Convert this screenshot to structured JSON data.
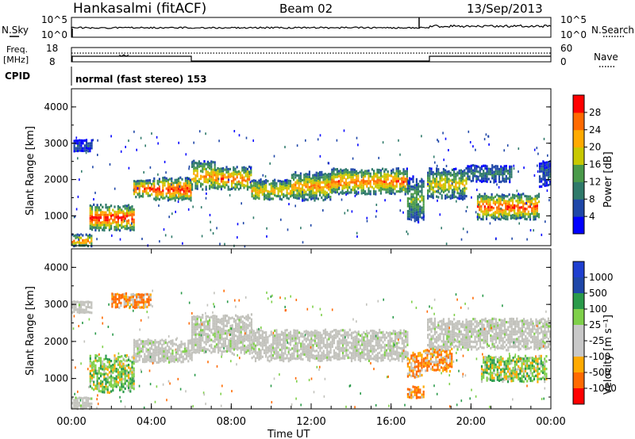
{
  "header": {
    "station": "Hankasalmi (fitACF)",
    "beam": "Beam 02",
    "date": "13/Sep/2013"
  },
  "top_panels": {
    "nsky_label": "N.Sky",
    "nsearch_label": "N.Search",
    "nsky_ticks": [
      "10^5",
      "10^0"
    ],
    "freq_label": "Freq.",
    "freq_unit": "[MHz]",
    "freq_ticks": [
      "18",
      "8"
    ],
    "nave_label": "Nave",
    "nave_ticks": [
      "60",
      "0"
    ],
    "cpid_label": "CPID",
    "cpid_text": "normal (fast stereo) 153"
  },
  "colors": {
    "power_scale": [
      "#0000ff",
      "#1f47a8",
      "#2f7a6a",
      "#4a9a4a",
      "#c8c800",
      "#ffaa00",
      "#ff6a00",
      "#ff0000"
    ],
    "velocity_scale": [
      "#ff0000",
      "#ff6a00",
      "#ffaa00",
      "#c8c8c8",
      "#c8c8c8",
      "#7fd04a",
      "#2a9a4a",
      "#1f47a8",
      "#1f3fd0"
    ],
    "velocity_gray": "#c2c2bc"
  },
  "chart_data": [
    {
      "type": "heatmap",
      "title": "Power",
      "ylabel": "Slant Range [km]",
      "ylim": [
        180,
        4500
      ],
      "xlim": [
        0,
        24
      ],
      "yticks": [
        "1000",
        "2000",
        "3000",
        "4000"
      ],
      "colorbar_label": "Power [dB]",
      "colorbar_ticks": [
        "4",
        "8",
        "12",
        "16",
        "20",
        "24",
        "28"
      ],
      "clim": [
        0,
        32
      ],
      "echo_bands": [
        {
          "t": [
            0.1,
            1.0
          ],
          "r": [
            2800,
            3100
          ],
          "p": 6
        },
        {
          "t": [
            0.9,
            3.1
          ],
          "r": [
            650,
            1300
          ],
          "p": 28
        },
        {
          "t": [
            3.1,
            4.1
          ],
          "r": [
            1550,
            2000
          ],
          "p": 26
        },
        {
          "t": [
            4.1,
            6.0
          ],
          "r": [
            1450,
            2050
          ],
          "p": 27
        },
        {
          "t": [
            6.0,
            7.2
          ],
          "r": [
            1750,
            2500
          ],
          "p": 22
        },
        {
          "t": [
            7.2,
            9.0
          ],
          "r": [
            1750,
            2350
          ],
          "p": 24
        },
        {
          "t": [
            9.0,
            11.0
          ],
          "r": [
            1450,
            2000
          ],
          "p": 20
        },
        {
          "t": [
            11.0,
            13.0
          ],
          "r": [
            1500,
            2200
          ],
          "p": 22
        },
        {
          "t": [
            13.0,
            16.8
          ],
          "r": [
            1650,
            2300
          ],
          "p": 24
        },
        {
          "t": [
            16.8,
            17.6
          ],
          "r": [
            900,
            2050
          ],
          "p": 14
        },
        {
          "t": [
            17.8,
            19.8
          ],
          "r": [
            1500,
            2300
          ],
          "p": 18
        },
        {
          "t": [
            19.8,
            22.0
          ],
          "r": [
            1950,
            2400
          ],
          "p": 10
        },
        {
          "t": [
            20.3,
            23.4
          ],
          "r": [
            950,
            1600
          ],
          "p": 26
        },
        {
          "t": [
            23.4,
            24.0
          ],
          "r": [
            1850,
            2500
          ],
          "p": 8
        },
        {
          "t": [
            0.0,
            1.0
          ],
          "r": [
            200,
            500
          ],
          "p": 24
        }
      ]
    },
    {
      "type": "heatmap",
      "title": "Velocity",
      "ylabel": "Slant Range [km]",
      "xlabel": "Time UT",
      "ylim": [
        180,
        4500
      ],
      "xlim": [
        0,
        24
      ],
      "yticks": [
        "1000",
        "2000",
        "3000",
        "4000"
      ],
      "xticks": [
        "00:00",
        "04:00",
        "08:00",
        "12:00",
        "16:00",
        "20:00",
        "00:00"
      ],
      "colorbar_label": "Velocity [m s⁻¹]",
      "colorbar_ticks": [
        "1000",
        "500",
        "100",
        "25",
        "-25",
        "-100",
        "-500",
        "-1000"
      ],
      "echo_bands": [
        {
          "t": [
            0.0,
            1.0
          ],
          "r": [
            2800,
            3100
          ],
          "v": "gray"
        },
        {
          "t": [
            0.9,
            3.1
          ],
          "r": [
            650,
            1600
          ],
          "v": "green"
        },
        {
          "t": [
            2.0,
            4.0
          ],
          "r": [
            2900,
            3300
          ],
          "v": "orange"
        },
        {
          "t": [
            3.1,
            6.0
          ],
          "r": [
            1450,
            2050
          ],
          "v": "gray"
        },
        {
          "t": [
            6.0,
            9.0
          ],
          "r": [
            1700,
            2700
          ],
          "v": "gray"
        },
        {
          "t": [
            9.0,
            16.8
          ],
          "r": [
            1500,
            2300
          ],
          "v": "gray"
        },
        {
          "t": [
            16.8,
            17.5
          ],
          "r": [
            1050,
            1700
          ],
          "v": "orange"
        },
        {
          "t": [
            16.8,
            17.6
          ],
          "r": [
            500,
            800
          ],
          "v": "orange"
        },
        {
          "t": [
            17.6,
            19.0
          ],
          "r": [
            1200,
            1800
          ],
          "v": "orange"
        },
        {
          "t": [
            17.8,
            24.0
          ],
          "r": [
            1800,
            2600
          ],
          "v": "gray"
        },
        {
          "t": [
            20.5,
            23.8
          ],
          "r": [
            950,
            1600
          ],
          "v": "green"
        },
        {
          "t": [
            0.0,
            1.0
          ],
          "r": [
            200,
            500
          ],
          "v": "gray"
        }
      ]
    }
  ],
  "axis": {
    "xlabel": "Time UT"
  }
}
